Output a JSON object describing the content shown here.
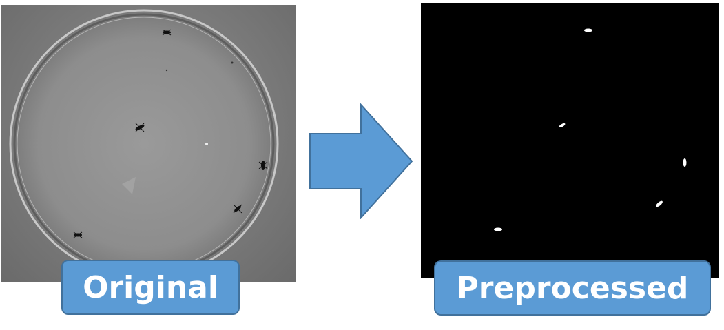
{
  "labels": {
    "original": "Original",
    "processed": "Preprocessed"
  },
  "colors": {
    "label_fill": "#5b9bd5",
    "label_border": "#41719c",
    "arrow_fill": "#5b9bd5",
    "processed_background": "#000000"
  }
}
